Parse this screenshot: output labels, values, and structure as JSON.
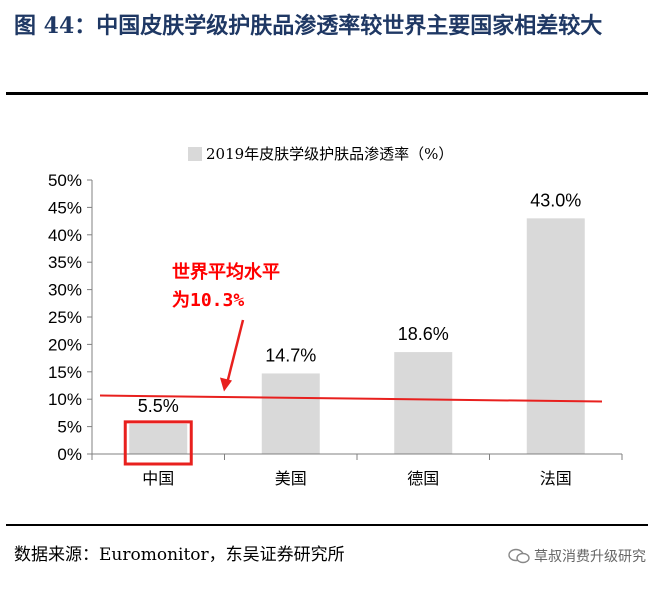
{
  "header": {
    "title": "图 44：中国皮肤学级护肤品渗透率较世界主要国家相差较大"
  },
  "footer": {
    "source": "数据来源：Euromonitor，东吴证券研究所",
    "watermark": "草叔消费升级研究"
  },
  "colors": {
    "bar": "#d9d9d9",
    "reference_line": "#e8201e",
    "highlight_box": "#e8201e",
    "title": "#1f3864"
  },
  "chart_data": {
    "type": "bar",
    "title": "",
    "xlabel": "",
    "ylabel": "",
    "categories": [
      "中国",
      "美国",
      "德国",
      "法国"
    ],
    "series": [
      {
        "name": "2019年皮肤学级护肤品渗透率（%）",
        "values": [
          5.5,
          14.7,
          18.6,
          43.0
        ]
      }
    ],
    "data_labels": [
      "5.5%",
      "14.7%",
      "18.6%",
      "43.0%"
    ],
    "ylim": [
      0,
      50
    ],
    "y_ticks": [
      0,
      5,
      10,
      15,
      20,
      25,
      30,
      35,
      40,
      45,
      50
    ],
    "y_tick_labels": [
      "0%",
      "5%",
      "10%",
      "15%",
      "20%",
      "25%",
      "30%",
      "35%",
      "40%",
      "45%",
      "50%"
    ],
    "legend_position": "top-center",
    "grid": false,
    "reference_line": {
      "value": 10.3,
      "label_lines": [
        "世界平均水平",
        "为10.3%"
      ]
    },
    "highlighted_category": "中国"
  }
}
